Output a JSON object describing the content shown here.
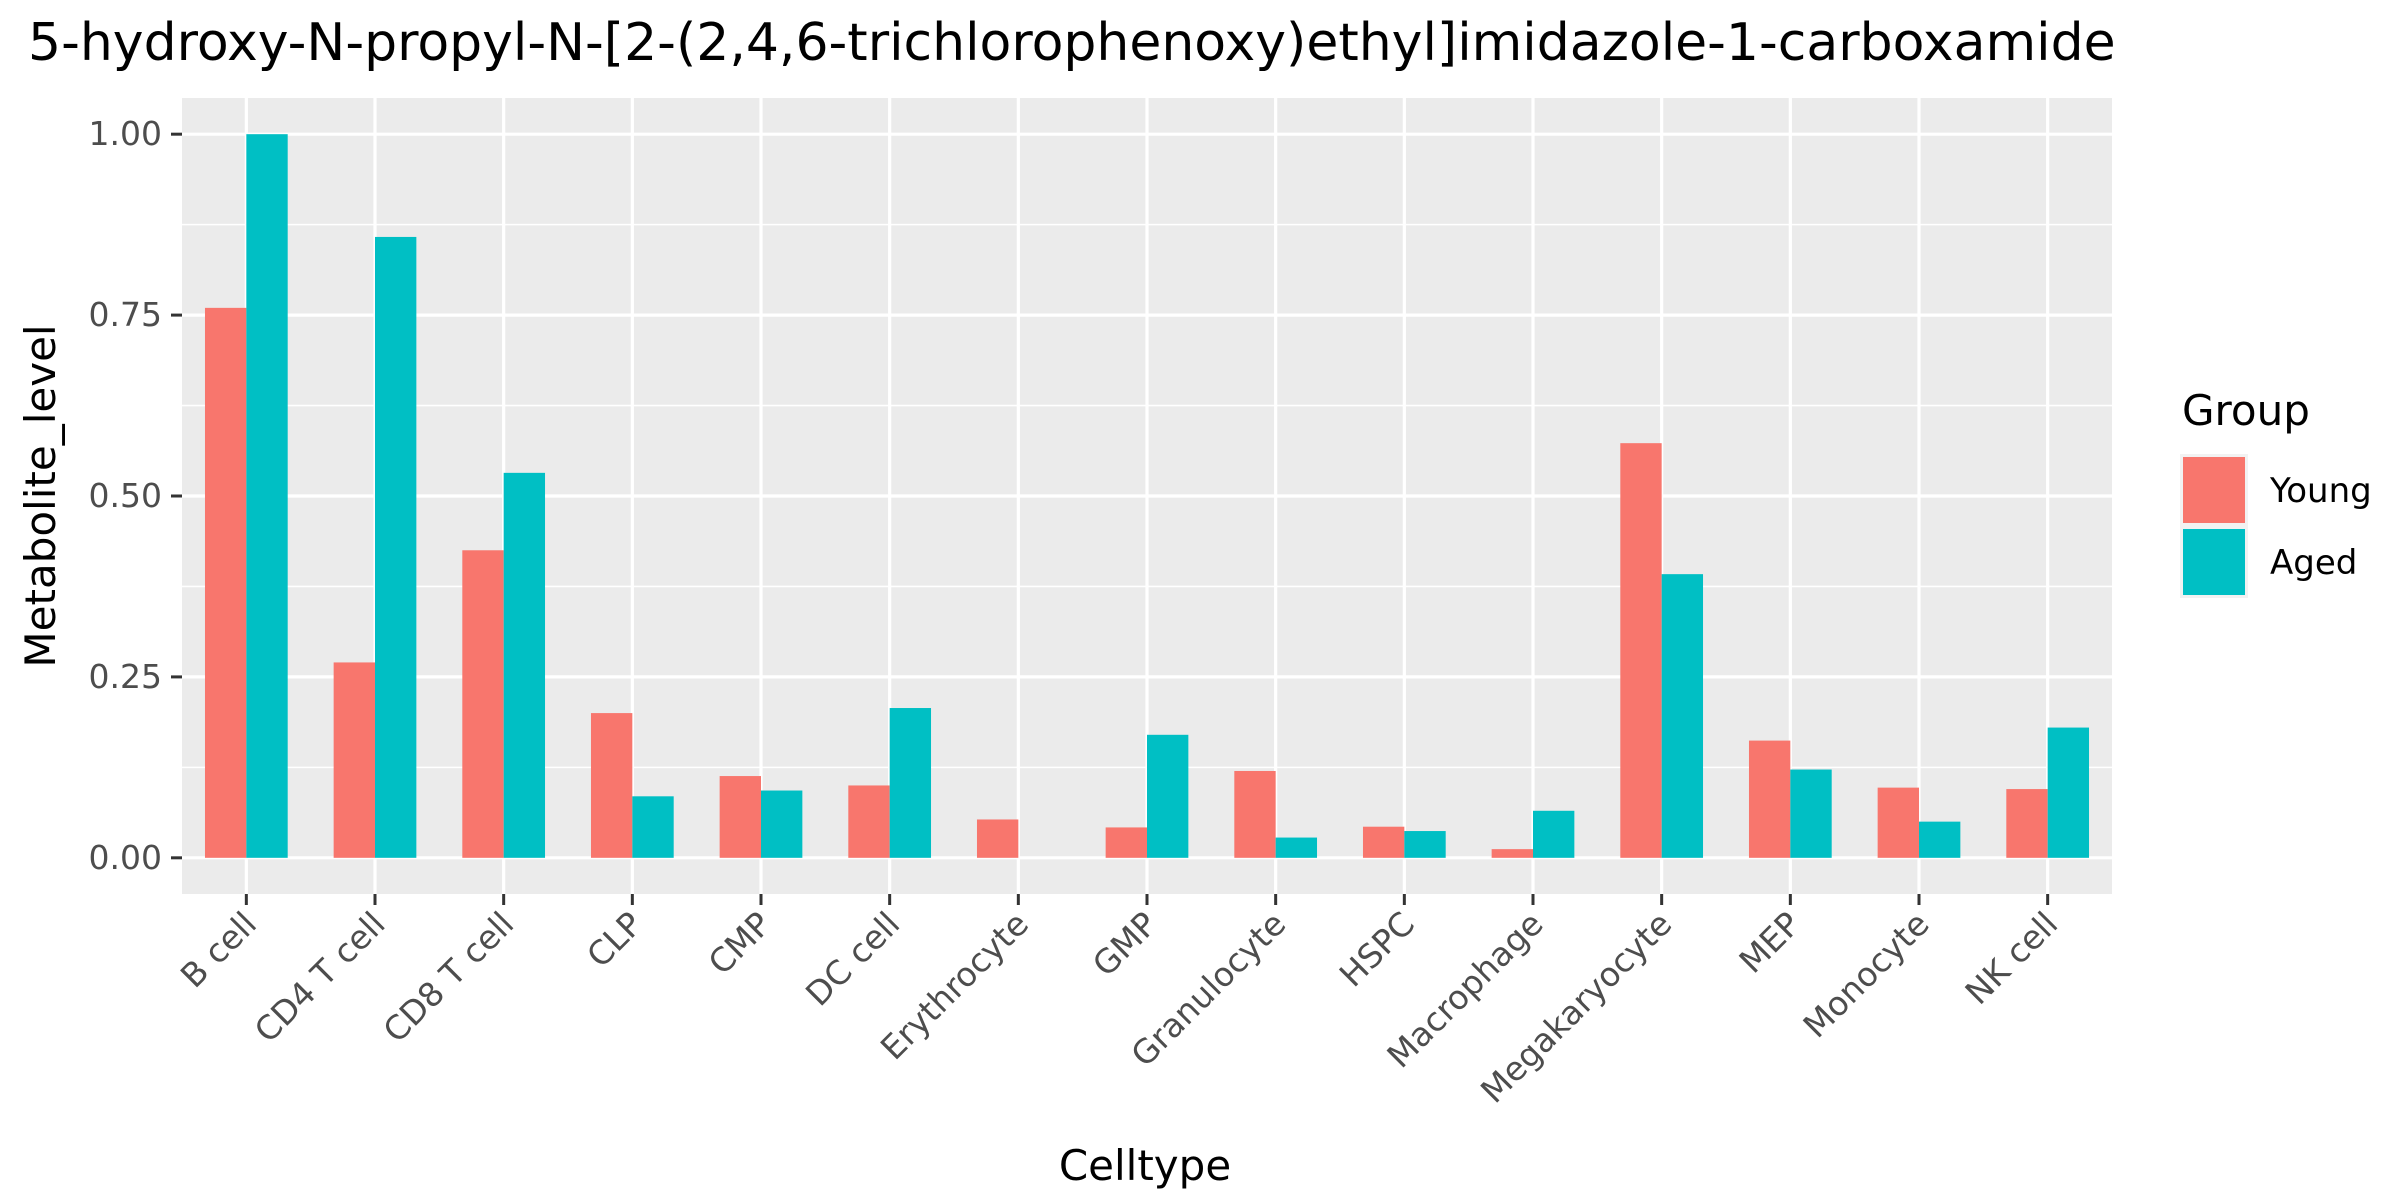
{
  "chart_data": {
    "type": "bar",
    "title": "5-hydroxy-N-propyl-N-[2-(2,4,6-trichlorophenoxy)ethyl]imidazole-1-carboxamide",
    "xlabel": "Celltype",
    "ylabel": "Metabolite_level",
    "ylim": [
      -0.05,
      1.05
    ],
    "yticks": [
      0,
      0.25,
      0.5,
      0.75,
      1
    ],
    "ytick_labels": [
      "0.00",
      "0.25",
      "0.50",
      "0.75",
      "1.00"
    ],
    "categories": [
      "B cell",
      "CD4 T cell",
      "CD8 T cell",
      "CLP",
      "CMP",
      "DC cell",
      "Erythrocyte",
      "GMP",
      "Granulocyte",
      "HSPC",
      "Macrophage",
      "Megakaryocyte",
      "MEP",
      "Monocyte",
      "NK cell"
    ],
    "series": [
      {
        "name": "Young",
        "color": "#F8766D",
        "values": [
          0.76,
          0.27,
          0.425,
          0.2,
          0.113,
          0.1,
          0.053,
          0.042,
          0.12,
          0.043,
          0.012,
          0.573,
          0.162,
          0.097,
          0.095
        ]
      },
      {
        "name": "Aged",
        "color": "#00BFC4",
        "values": [
          1.0,
          0.858,
          0.532,
          0.085,
          0.093,
          0.207,
          null,
          0.17,
          0.028,
          0.037,
          0.065,
          0.392,
          0.122,
          0.05,
          0.18
        ]
      }
    ],
    "legend": {
      "title": "Group",
      "placement": "right"
    },
    "grid": true,
    "panel_background": "#EBEBEB",
    "grid_color": "#FFFFFF"
  }
}
